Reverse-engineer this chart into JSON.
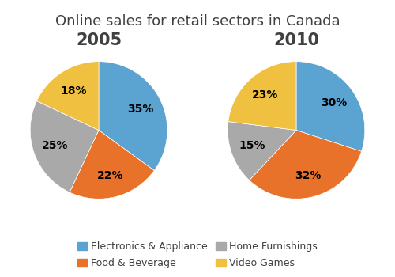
{
  "title": "Online sales for retail sectors in Canada",
  "title_fontsize": 13,
  "year_2005": {
    "label": "2005",
    "values": [
      35,
      22,
      25,
      18
    ],
    "startangle": 90
  },
  "year_2010": {
    "label": "2010",
    "values": [
      30,
      32,
      15,
      23
    ],
    "startangle": 90
  },
  "categories": [
    "Electronics & Appliance",
    "Food & Beverage",
    "Home Furnishings",
    "Video Games"
  ],
  "colors": [
    "#5BA3D0",
    "#E8722A",
    "#A9A9A9",
    "#F0C040"
  ],
  "pct_fontsize": 10,
  "legend_fontsize": 9,
  "year_fontsize": 15,
  "background_color": "#ffffff"
}
